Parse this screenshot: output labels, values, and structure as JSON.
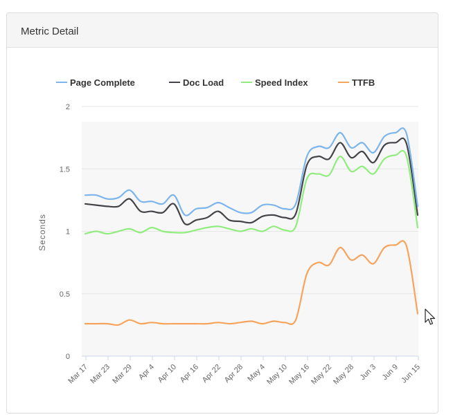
{
  "panel": {
    "title": "Metric Detail"
  },
  "colors": {
    "page_complete": "#7cb5ec",
    "doc_load": "#434348",
    "speed_index": "#90ed7d",
    "ttfb": "#f7a35c",
    "grid": "#e6e6e6",
    "plot_band": "#f7f7f7"
  },
  "chart_data": {
    "type": "line",
    "title": "",
    "xlabel": "",
    "ylabel": "Seconds",
    "ylim": [
      0,
      2
    ],
    "yticks": [
      "0",
      "0.5",
      "1",
      "1.5",
      "2"
    ],
    "xticks": [
      "Mar 17",
      "Mar 23",
      "Mar 29",
      "Apr 4",
      "Apr 10",
      "Apr 16",
      "Apr 22",
      "Apr 28",
      "May 4",
      "May 10",
      "May 16",
      "May 22",
      "May 28",
      "Jun 3",
      "Jun 9",
      "Jun 15"
    ],
    "legend_position": "top",
    "grid": true,
    "series": [
      {
        "name": "Page Complete",
        "color_key": "page_complete",
        "values": [
          1.29,
          1.29,
          1.26,
          1.27,
          1.33,
          1.24,
          1.24,
          1.22,
          1.29,
          1.13,
          1.18,
          1.19,
          1.23,
          1.19,
          1.15,
          1.15,
          1.21,
          1.21,
          1.18,
          1.22,
          1.6,
          1.68,
          1.67,
          1.79,
          1.67,
          1.71,
          1.63,
          1.76,
          1.79,
          1.78,
          1.2
        ]
      },
      {
        "name": "Doc Load",
        "color_key": "doc_load",
        "values": [
          1.22,
          1.21,
          1.2,
          1.2,
          1.26,
          1.16,
          1.16,
          1.15,
          1.22,
          1.06,
          1.09,
          1.11,
          1.16,
          1.09,
          1.08,
          1.07,
          1.12,
          1.13,
          1.11,
          1.14,
          1.53,
          1.6,
          1.58,
          1.71,
          1.59,
          1.64,
          1.55,
          1.69,
          1.71,
          1.7,
          1.13
        ]
      },
      {
        "name": "Speed Index",
        "color_key": "speed_index",
        "values": [
          0.98,
          1.0,
          0.98,
          1.0,
          1.02,
          0.99,
          1.03,
          1.0,
          0.99,
          0.99,
          1.01,
          1.03,
          1.04,
          1.02,
          1.0,
          1.02,
          1.0,
          1.04,
          1.01,
          1.04,
          1.42,
          1.46,
          1.45,
          1.6,
          1.48,
          1.52,
          1.46,
          1.58,
          1.61,
          1.6,
          1.03
        ]
      },
      {
        "name": "TTFB",
        "color_key": "ttfb",
        "values": [
          0.26,
          0.26,
          0.26,
          0.25,
          0.29,
          0.26,
          0.27,
          0.26,
          0.26,
          0.26,
          0.26,
          0.26,
          0.27,
          0.26,
          0.27,
          0.28,
          0.26,
          0.28,
          0.27,
          0.29,
          0.66,
          0.75,
          0.73,
          0.87,
          0.77,
          0.81,
          0.74,
          0.87,
          0.89,
          0.88,
          0.34
        ]
      }
    ]
  },
  "cursor_icon": "mouse-pointer-icon"
}
